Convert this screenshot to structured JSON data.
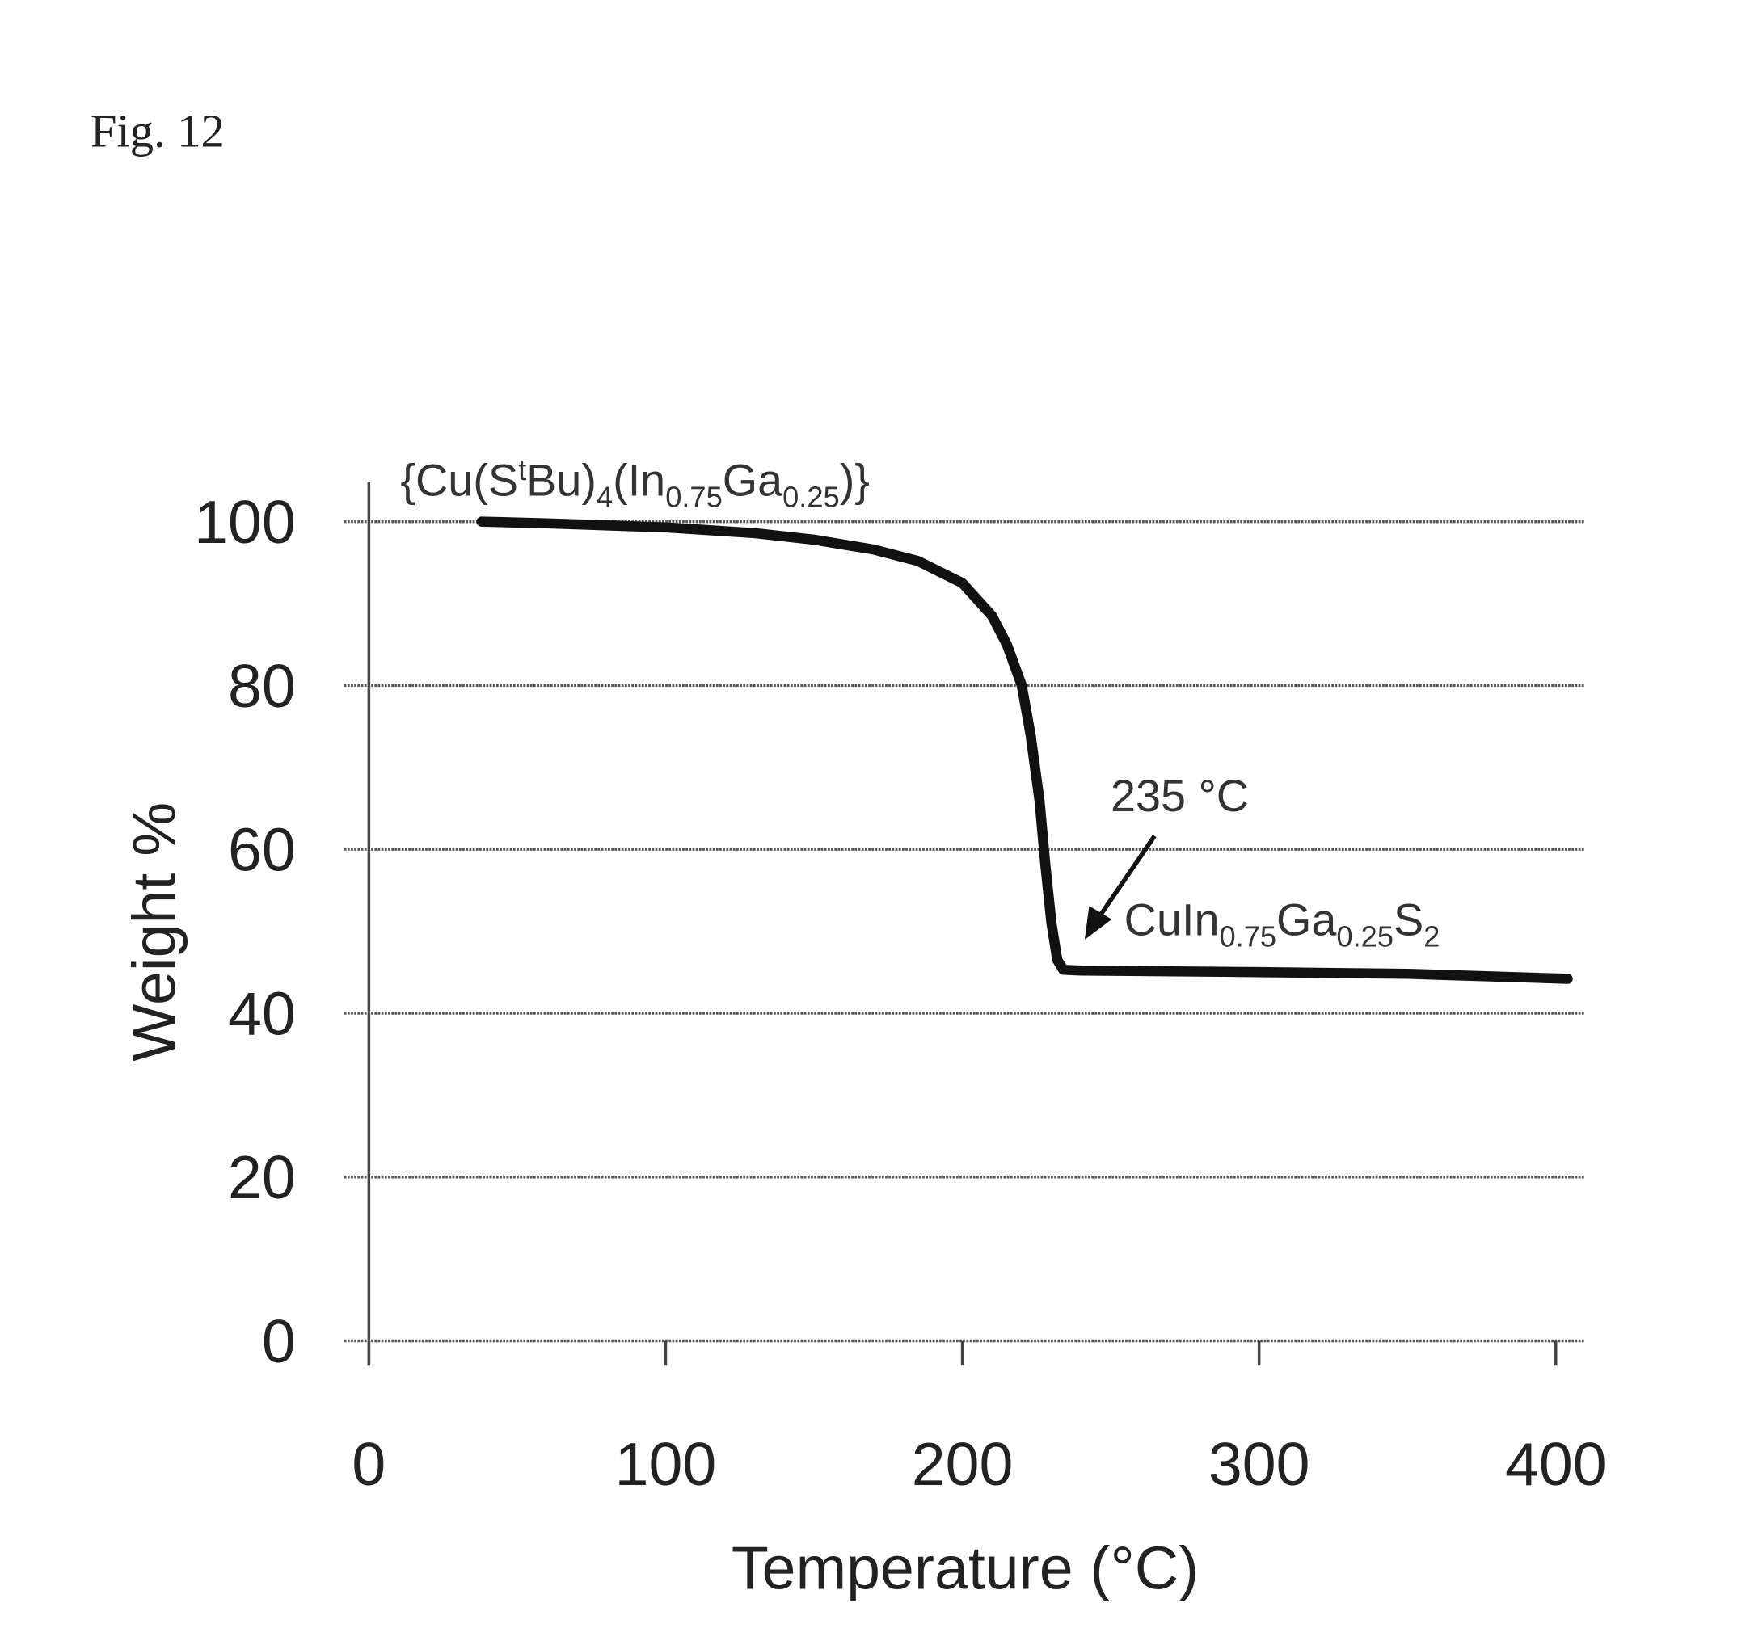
{
  "figure_label": "Fig. 12",
  "chart_data": {
    "type": "line",
    "title": "",
    "xlabel": "Temperature (°C)",
    "ylabel": "Weight %",
    "xlim": [
      0,
      400
    ],
    "ylim": [
      0,
      100
    ],
    "x_ticks": [
      "0",
      "100",
      "200",
      "300",
      "400"
    ],
    "y_ticks": [
      "0",
      "20",
      "40",
      "60",
      "80",
      "100"
    ],
    "grid": "horizontal",
    "series": [
      {
        "name": "{Cu(StBu)4(In0.75Ga0.25)}",
        "x": [
          38,
          60,
          100,
          130,
          150,
          170,
          185,
          200,
          210,
          215,
          220,
          223,
          226,
          228,
          230,
          232,
          234,
          240,
          300,
          350,
          404
        ],
        "y": [
          100,
          99.8,
          99.3,
          98.6,
          97.8,
          96.6,
          95.2,
          92.5,
          88.5,
          85,
          80,
          74,
          66,
          58,
          51,
          46.5,
          45.3,
          45.2,
          45,
          44.8,
          44.2
        ]
      }
    ],
    "annotations": {
      "start_label": {
        "main": "{Cu(S",
        "sup": "t",
        "mid": "Bu)",
        "sub1": "4",
        "mid2": "(In",
        "sub2": "0.75",
        "mid3": "Ga",
        "sub3": "0.25",
        "end": ")}"
      },
      "temp_label": "235 °C",
      "product_label": {
        "a": "CuIn",
        "s1": "0.75",
        "b": "Ga",
        "s2": "0.25",
        "c": "S",
        "s3": "2"
      }
    }
  }
}
